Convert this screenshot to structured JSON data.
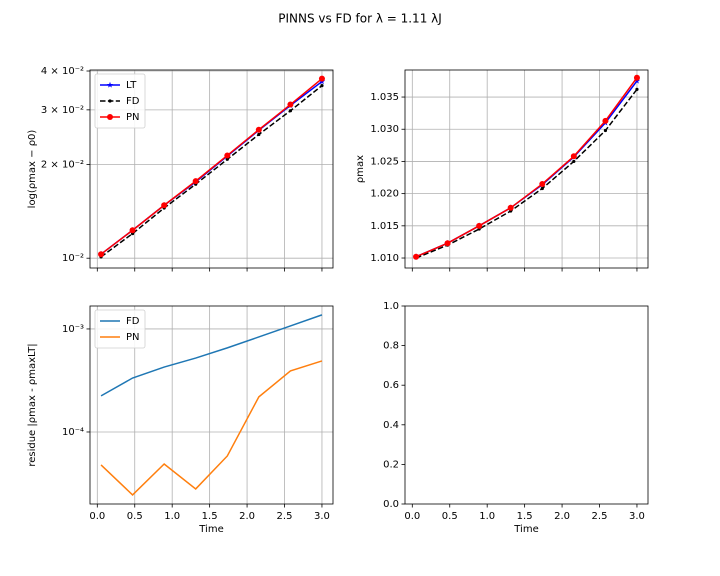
{
  "suptitle": "PINNS vs FD for λ = 1.11 λJ",
  "chart_data": [
    {
      "type": "line",
      "ylabel": "log(ρmax − ρ0)",
      "x": [
        0.05,
        0.471,
        0.893,
        1.314,
        1.736,
        2.157,
        2.579,
        3.0
      ],
      "xlim": [
        -0.0975,
        3.1475
      ],
      "xticks": [
        0,
        0.5,
        1,
        1.5,
        2,
        2.5,
        3
      ],
      "xticklabels": false,
      "yscale": "log",
      "ylim": [
        0.0093,
        0.0403
      ],
      "yticks": [
        {
          "value": 0.01,
          "label": "10⁻²"
        },
        {
          "value": 0.02,
          "label": "2 × 10⁻²"
        },
        {
          "value": 0.03,
          "label": "3 × 10⁻²"
        },
        {
          "value": 0.04,
          "label": "4 × 10⁻²"
        }
      ],
      "grid": true,
      "legend": "upper left",
      "series": [
        {
          "name": "LT",
          "color": "#0000ff",
          "marker": "*",
          "linestyle": "solid",
          "values": [
            0.0103,
            0.0123,
            0.0148,
            0.0176,
            0.0213,
            0.0258,
            0.031,
            0.037
          ]
        },
        {
          "name": "FD",
          "color": "#000000",
          "marker": ".",
          "linestyle": "dashed",
          "values": [
            0.0101,
            0.012,
            0.0145,
            0.0173,
            0.0208,
            0.025,
            0.0298,
            0.0359
          ]
        },
        {
          "name": "PN",
          "color": "#ff0000",
          "marker": "o",
          "linestyle": "solid",
          "values": [
            0.0103,
            0.0123,
            0.0148,
            0.0177,
            0.0214,
            0.0259,
            0.0312,
            0.0378
          ]
        }
      ]
    },
    {
      "type": "line",
      "ylabel": "ρmax",
      "x": [
        0.05,
        0.471,
        0.893,
        1.314,
        1.736,
        2.157,
        2.579,
        3.0
      ],
      "xlim": [
        -0.0975,
        3.1475
      ],
      "xticks": [
        0,
        0.5,
        1,
        1.5,
        2,
        2.5,
        3
      ],
      "xticklabels": false,
      "yscale": "linear",
      "ylim": [
        1.00845,
        1.0392
      ],
      "yticks": [
        {
          "value": 1.01,
          "label": "1.010"
        },
        {
          "value": 1.015,
          "label": "1.015"
        },
        {
          "value": 1.02,
          "label": "1.020"
        },
        {
          "value": 1.025,
          "label": "1.025"
        },
        {
          "value": 1.03,
          "label": "1.030"
        },
        {
          "value": 1.035,
          "label": "1.035"
        }
      ],
      "grid": true,
      "series": [
        {
          "color": "#0000ff",
          "marker": "*",
          "linestyle": "solid",
          "values": [
            1.0102,
            1.0123,
            1.015,
            1.0178,
            1.0214,
            1.0257,
            1.031,
            1.0375
          ]
        },
        {
          "color": "#000000",
          "marker": ".",
          "linestyle": "dashed",
          "values": [
            1.01,
            1.012,
            1.0145,
            1.0173,
            1.0208,
            1.025,
            1.0298,
            1.0362
          ]
        },
        {
          "color": "#ff0000",
          "marker": "o",
          "linestyle": "solid",
          "values": [
            1.0102,
            1.0123,
            1.015,
            1.0178,
            1.0215,
            1.0258,
            1.0313,
            1.038
          ]
        }
      ]
    },
    {
      "type": "line",
      "xlabel": "Time",
      "ylabel": "residue |ρmax - ρmaxLT|",
      "x": [
        0.05,
        0.471,
        0.893,
        1.314,
        1.736,
        2.157,
        2.579,
        3.0
      ],
      "xlim": [
        -0.0975,
        3.1475
      ],
      "xticks": [
        {
          "value": 0,
          "label": "0.0"
        },
        {
          "value": 0.5,
          "label": "0.5"
        },
        {
          "value": 1,
          "label": "1.0"
        },
        {
          "value": 1.5,
          "label": "1.5"
        },
        {
          "value": 2,
          "label": "2.0"
        },
        {
          "value": 2.5,
          "label": "2.5"
        },
        {
          "value": 3,
          "label": "3.0"
        }
      ],
      "xticklabels": true,
      "yscale": "log",
      "ylim": [
        2e-05,
        0.00167
      ],
      "yticks": [
        {
          "value": 0.0001,
          "label": "10⁻⁴"
        },
        {
          "value": 0.001,
          "label": "10⁻³"
        }
      ],
      "grid": true,
      "legend": "upper left",
      "series": [
        {
          "name": "FD",
          "color": "#1f77b4",
          "linestyle": "solid",
          "values": [
            0.000224,
            0.000334,
            0.000427,
            0.000522,
            0.000655,
            0.000836,
            0.00107,
            0.00137
          ]
        },
        {
          "name": "PN",
          "color": "#ff7f0e",
          "linestyle": "solid",
          "values": [
            4.79e-05,
            2.45e-05,
            4.89e-05,
            2.8e-05,
            5.85e-05,
            0.000219,
            0.000391,
            0.000489
          ]
        }
      ]
    },
    {
      "type": "line",
      "xlabel": "Time",
      "x": [],
      "xlim": [
        -0.0975,
        3.1475
      ],
      "xticks": [
        {
          "value": 0,
          "label": "0.0"
        },
        {
          "value": 0.5,
          "label": "0.5"
        },
        {
          "value": 1,
          "label": "1.0"
        },
        {
          "value": 1.5,
          "label": "1.5"
        },
        {
          "value": 2,
          "label": "2.0"
        },
        {
          "value": 2.5,
          "label": "2.5"
        },
        {
          "value": 3,
          "label": "3.0"
        }
      ],
      "xticklabels": true,
      "yscale": "linear",
      "ylim": [
        0,
        1
      ],
      "yticks": [
        {
          "value": 0,
          "label": "0.0"
        },
        {
          "value": 0.2,
          "label": "0.2"
        },
        {
          "value": 0.4,
          "label": "0.4"
        },
        {
          "value": 0.6,
          "label": "0.6"
        },
        {
          "value": 0.8,
          "label": "0.8"
        },
        {
          "value": 1,
          "label": "1.0"
        }
      ],
      "grid": false,
      "series": []
    }
  ]
}
